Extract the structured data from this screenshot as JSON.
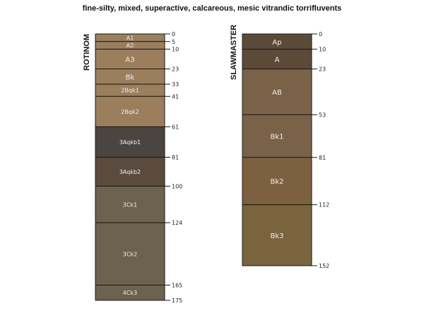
{
  "title": "fine-silty, mixed, superactive, calcareous, mesic vitrandic torrifluvents",
  "profiles": [
    {
      "name": "ROTINOM",
      "max_depth": 175,
      "horizons": [
        {
          "name": "A1",
          "top": 0,
          "bottom": 5,
          "color": "#9b7f5c"
        },
        {
          "name": "A2",
          "top": 5,
          "bottom": 10,
          "color": "#9b7f5c"
        },
        {
          "name": "A3",
          "top": 10,
          "bottom": 23,
          "color": "#9b7f5c"
        },
        {
          "name": "Bk",
          "top": 23,
          "bottom": 33,
          "color": "#9b7f5c"
        },
        {
          "name": "2Bqk1",
          "top": 33,
          "bottom": 41,
          "color": "#9b7f5c"
        },
        {
          "name": "2Bqk2",
          "top": 41,
          "bottom": 61,
          "color": "#9b7f5c"
        },
        {
          "name": "3Aqkb1",
          "top": 61,
          "bottom": 81,
          "color": "#4b4541"
        },
        {
          "name": "3Aqkb2",
          "top": 81,
          "bottom": 100,
          "color": "#5b4b3e"
        },
        {
          "name": "3Ck1",
          "top": 100,
          "bottom": 124,
          "color": "#6b634f"
        },
        {
          "name": "3Ck2",
          "top": 124,
          "bottom": 165,
          "color": "#6b634f"
        },
        {
          "name": "4Ck3",
          "top": 165,
          "bottom": 175,
          "color": "#6b634f"
        }
      ],
      "depth_labels": [
        "0",
        "5",
        "10",
        "23",
        "33",
        "41",
        "61",
        "81",
        "100",
        "124",
        "165",
        "175"
      ]
    },
    {
      "name": "SLAWMASTER",
      "max_depth": 152,
      "horizons": [
        {
          "name": "Ap",
          "top": 0,
          "bottom": 10,
          "color": "#5c4a38"
        },
        {
          "name": "A",
          "top": 10,
          "bottom": 23,
          "color": "#5c4a38"
        },
        {
          "name": "AB",
          "top": 23,
          "bottom": 53,
          "color": "#7a6249"
        },
        {
          "name": "Bk1",
          "top": 53,
          "bottom": 81,
          "color": "#7a6249"
        },
        {
          "name": "Bk2",
          "top": 81,
          "bottom": 112,
          "color": "#7d6040"
        },
        {
          "name": "Bk3",
          "top": 112,
          "bottom": 152,
          "color": "#7a643e"
        }
      ],
      "depth_labels": [
        "0",
        "10",
        "23",
        "53",
        "81",
        "112",
        "152"
      ]
    }
  ]
}
